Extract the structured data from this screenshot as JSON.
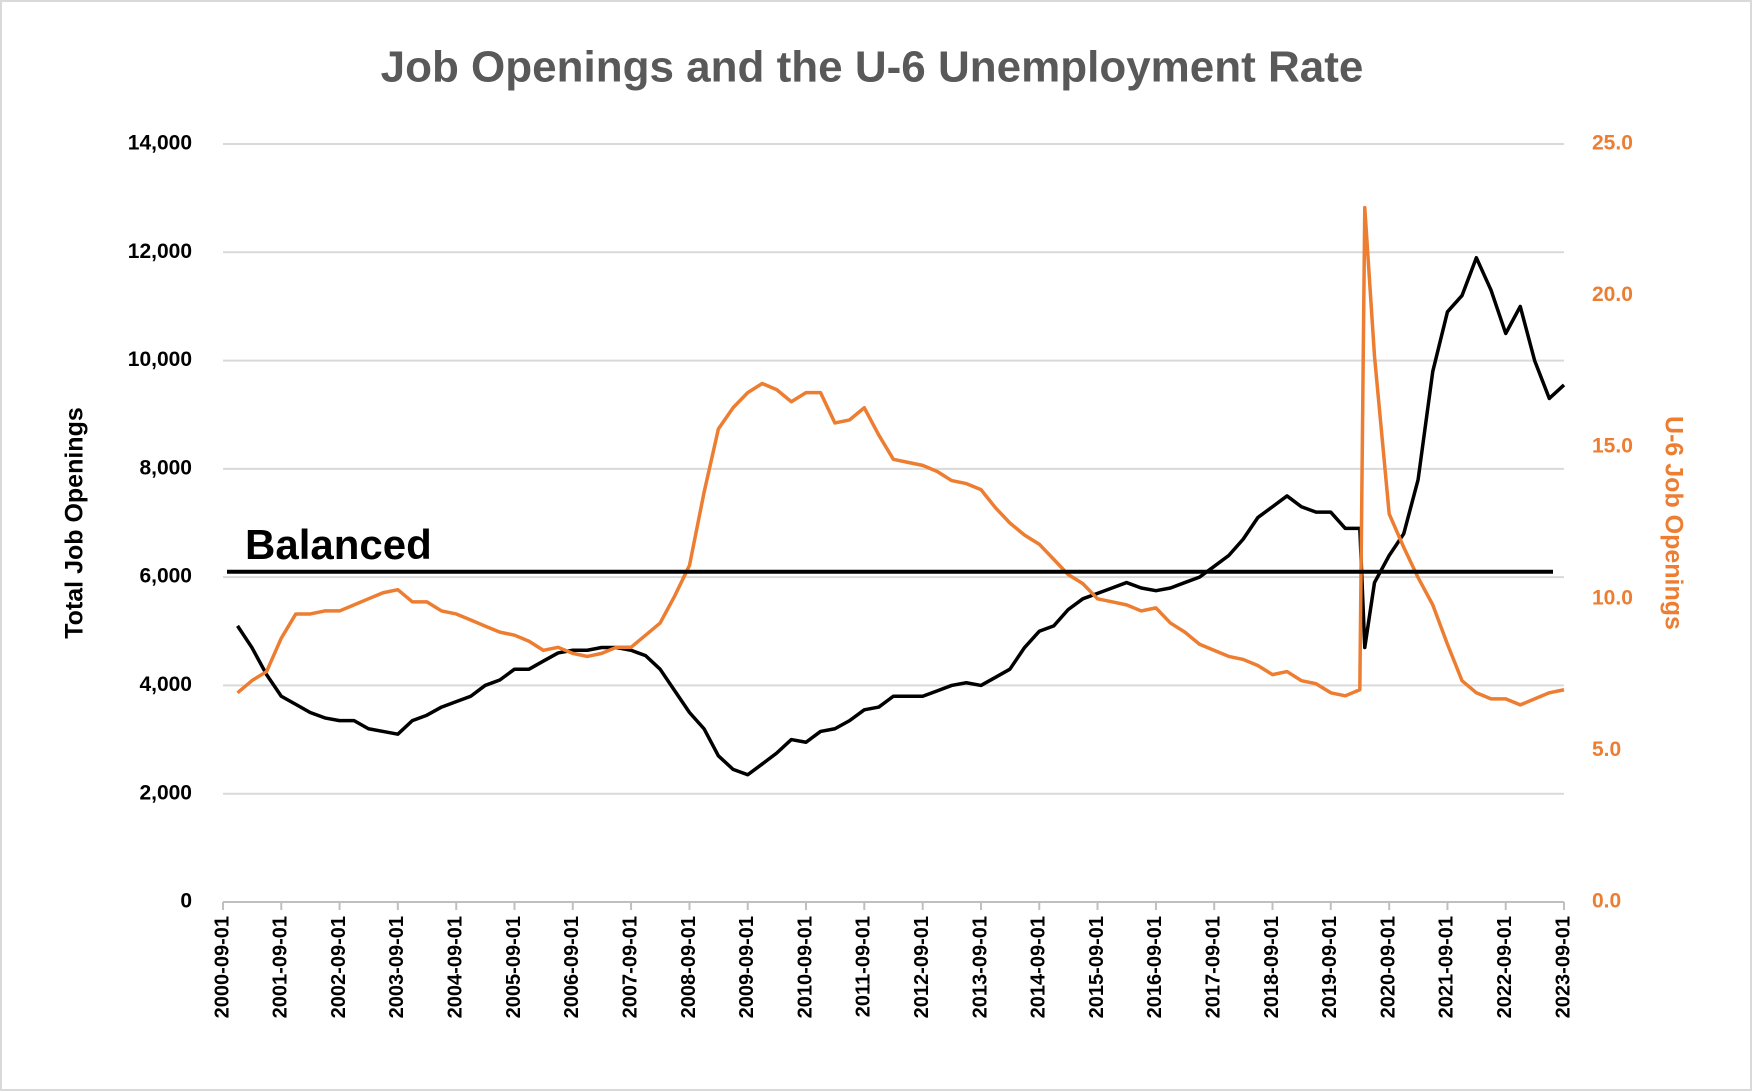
{
  "chart_data": {
    "type": "line",
    "title": "Job Openings and the U-6 Unemployment Rate",
    "y_label": "Total Job Openings",
    "y2_label": "U-6 Job Openings",
    "annotation": {
      "text": "Balanced",
      "value": 6100
    },
    "x": [
      "2000-12-01",
      "2001-03-01",
      "2001-06-01",
      "2001-09-01",
      "2001-12-01",
      "2002-03-01",
      "2002-06-01",
      "2002-09-01",
      "2002-12-01",
      "2003-03-01",
      "2003-06-01",
      "2003-09-01",
      "2003-12-01",
      "2004-03-01",
      "2004-06-01",
      "2004-09-01",
      "2004-12-01",
      "2005-03-01",
      "2005-06-01",
      "2005-09-01",
      "2005-12-01",
      "2006-03-01",
      "2006-06-01",
      "2006-09-01",
      "2006-12-01",
      "2007-03-01",
      "2007-06-01",
      "2007-09-01",
      "2007-12-01",
      "2008-03-01",
      "2008-06-01",
      "2008-09-01",
      "2008-12-01",
      "2009-03-01",
      "2009-06-01",
      "2009-09-01",
      "2009-12-01",
      "2010-03-01",
      "2010-06-01",
      "2010-09-01",
      "2010-12-01",
      "2011-03-01",
      "2011-06-01",
      "2011-09-01",
      "2011-12-01",
      "2012-03-01",
      "2012-06-01",
      "2012-09-01",
      "2012-12-01",
      "2013-03-01",
      "2013-06-01",
      "2013-09-01",
      "2013-12-01",
      "2014-03-01",
      "2014-06-01",
      "2014-09-01",
      "2014-12-01",
      "2015-03-01",
      "2015-06-01",
      "2015-09-01",
      "2015-12-01",
      "2016-03-01",
      "2016-06-01",
      "2016-09-01",
      "2016-12-01",
      "2017-03-01",
      "2017-06-01",
      "2017-09-01",
      "2017-12-01",
      "2018-03-01",
      "2018-06-01",
      "2018-09-01",
      "2018-12-01",
      "2019-03-01",
      "2019-06-01",
      "2019-09-01",
      "2019-12-01",
      "2020-03-01",
      "2020-04-01",
      "2020-06-01",
      "2020-09-01",
      "2020-12-01",
      "2021-03-01",
      "2021-06-01",
      "2021-09-01",
      "2021-12-01",
      "2022-03-01",
      "2022-06-01",
      "2022-09-01",
      "2022-12-01",
      "2023-03-01",
      "2023-06-01",
      "2023-09-01"
    ],
    "series": [
      {
        "color": "#000000",
        "values": [
          5100,
          4700,
          4200,
          3800,
          3650,
          3500,
          3400,
          3350,
          3350,
          3200,
          3150,
          3100,
          3350,
          3450,
          3600,
          3700,
          3800,
          4000,
          4100,
          4300,
          4300,
          4450,
          4600,
          4650,
          4650,
          4700,
          4700,
          4650,
          4550,
          4300,
          3900,
          3500,
          3200,
          2700,
          2450,
          2350,
          2550,
          2750,
          3000,
          2950,
          3150,
          3200,
          3350,
          3550,
          3600,
          3800,
          3800,
          3800,
          3900,
          4000,
          4050,
          4000,
          4150,
          4300,
          4700,
          5000,
          5100,
          5400,
          5600,
          5700,
          5800,
          5900,
          5800,
          5750,
          5800,
          5900,
          6000,
          6200,
          6400,
          6700,
          7100,
          7300,
          7500,
          7300,
          7200,
          7200,
          6900,
          6900,
          4700,
          5900,
          6400,
          6800,
          7800,
          9800,
          10900,
          11200,
          11900,
          11300,
          10500,
          11000,
          10000,
          9300,
          9550
        ]
      },
      {
        "color": "#ed7d31",
        "axis": "y2",
        "values": [
          6.9,
          7.3,
          7.6,
          8.7,
          9.5,
          9.5,
          9.6,
          9.6,
          9.8,
          10.0,
          10.2,
          10.3,
          9.9,
          9.9,
          9.6,
          9.5,
          9.3,
          9.1,
          8.9,
          8.8,
          8.6,
          8.3,
          8.4,
          8.2,
          8.1,
          8.2,
          8.4,
          8.4,
          8.8,
          9.2,
          10.1,
          11.1,
          13.5,
          15.6,
          16.3,
          16.8,
          17.1,
          16.9,
          16.5,
          16.8,
          16.8,
          15.8,
          15.9,
          16.3,
          15.4,
          14.6,
          14.5,
          14.4,
          14.2,
          13.9,
          13.8,
          13.6,
          13.0,
          12.5,
          12.1,
          11.8,
          11.3,
          10.8,
          10.5,
          10.0,
          9.9,
          9.8,
          9.6,
          9.7,
          9.2,
          8.9,
          8.5,
          8.3,
          8.1,
          8.0,
          7.8,
          7.5,
          7.6,
          7.3,
          7.2,
          6.9,
          6.8,
          7.0,
          22.9,
          18.0,
          12.8,
          11.7,
          10.7,
          9.8,
          8.5,
          7.3,
          6.9,
          6.7,
          6.7,
          6.5,
          6.7,
          6.9,
          7.0
        ]
      }
    ],
    "xlim": [
      "2000-09-01",
      "2023-09-01"
    ],
    "xticks": [
      "2000-09-01",
      "2001-09-01",
      "2002-09-01",
      "2003-09-01",
      "2004-09-01",
      "2005-09-01",
      "2006-09-01",
      "2007-09-01",
      "2008-09-01",
      "2009-09-01",
      "2010-09-01",
      "2011-09-01",
      "2012-09-01",
      "2013-09-01",
      "2014-09-01",
      "2015-09-01",
      "2016-09-01",
      "2017-09-01",
      "2018-09-01",
      "2019-09-01",
      "2020-09-01",
      "2021-09-01",
      "2022-09-01",
      "2023-09-01"
    ],
    "ylim": [
      0,
      14000
    ],
    "yticks": [
      0,
      {
        "value": 2000,
        "label": "2,000"
      },
      {
        "value": 4000,
        "label": "4,000"
      },
      {
        "value": 6000,
        "label": "6,000"
      },
      {
        "value": 8000,
        "label": "8,000"
      },
      {
        "value": 10000,
        "label": "10,000"
      },
      {
        "value": 12000,
        "label": "12,000"
      },
      {
        "value": 14000,
        "label": "14,000"
      }
    ],
    "y2lim": [
      0,
      25
    ],
    "y2ticks": [
      {
        "value": 0,
        "label": "0.0"
      },
      {
        "value": 5,
        "label": "5.0"
      },
      {
        "value": 10,
        "label": "10.0"
      },
      {
        "value": 15,
        "label": "15.0"
      },
      {
        "value": 20,
        "label": "20.0"
      },
      {
        "value": 25,
        "label": "25.0"
      }
    ],
    "y2_color": "#ed7d31",
    "grid": true
  }
}
